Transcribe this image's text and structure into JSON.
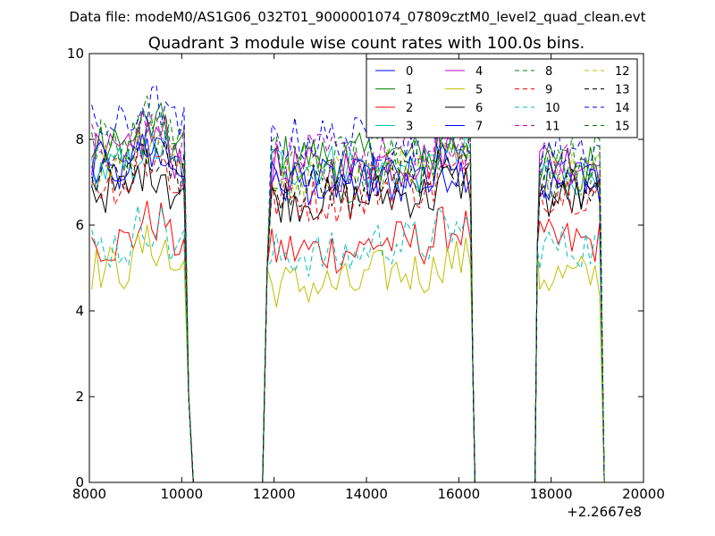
{
  "chart_data": {
    "type": "line",
    "suptitle": "Data file: modeM0/AS1G06_032T01_9000001074_07809cztM0_level2_quad_clean.evt",
    "title": "Quadrant 3 module wise count rates with 100.0s bins.",
    "xlabel": "",
    "ylabel": "",
    "x_offset_label": "+2.2667e8",
    "xlim": [
      8000,
      20000
    ],
    "ylim": [
      0,
      10
    ],
    "x_ticks": [
      8000,
      10000,
      12000,
      14000,
      16000,
      18000,
      20000
    ],
    "x_tick_labels": [
      "8000",
      "10000",
      "12000",
      "14000",
      "16000",
      "18000",
      "20000"
    ],
    "y_ticks": [
      0,
      2,
      4,
      6,
      8,
      10
    ],
    "y_tick_labels": [
      "0",
      "2",
      "4",
      "6",
      "8",
      "10"
    ],
    "grid": false,
    "legend_placement": "upper-right",
    "legend_columns": 4,
    "bin_seconds": 100,
    "segments": [
      {
        "start": 8050,
        "end": 10050
      },
      {
        "start": 11950,
        "end": 16250
      },
      {
        "start": 17750,
        "end": 19050
      }
    ],
    "zero_gap_points": [
      10250,
      10500,
      11000,
      11500,
      11750,
      16350,
      16500,
      17000,
      17500,
      17650
    ],
    "series": [
      {
        "name": "0",
        "color": "#0000ff",
        "dash": "solid",
        "levels": [
          7.2,
          7.0,
          7.0,
          6.9
        ]
      },
      {
        "name": "1",
        "color": "#008000",
        "dash": "solid",
        "levels": [
          7.8,
          7.6,
          7.6,
          7.4
        ]
      },
      {
        "name": "2",
        "color": "#ff0000",
        "dash": "solid",
        "levels": [
          5.6,
          5.4,
          5.6,
          5.6
        ]
      },
      {
        "name": "3",
        "color": "#00bfbf",
        "dash": "solid",
        "levels": [
          7.3,
          7.4,
          7.3,
          7.2
        ]
      },
      {
        "name": "4",
        "color": "#bf00bf",
        "dash": "solid",
        "levels": [
          7.6,
          7.3,
          7.5,
          7.5
        ]
      },
      {
        "name": "5",
        "color": "#bfbf00",
        "dash": "solid",
        "levels": [
          5.0,
          4.6,
          4.9,
          4.8
        ]
      },
      {
        "name": "6",
        "color": "#000000",
        "dash": "solid",
        "levels": [
          6.8,
          6.6,
          6.7,
          6.6
        ]
      },
      {
        "name": "7",
        "color": "#0000ff",
        "dash": "solid",
        "levels": [
          7.4,
          7.0,
          7.1,
          7.0
        ]
      },
      {
        "name": "8",
        "color": "#008000",
        "dash": "dashed",
        "levels": [
          7.6,
          7.0,
          7.2,
          7.2
        ]
      },
      {
        "name": "9",
        "color": "#ff0000",
        "dash": "dashed",
        "levels": [
          7.0,
          6.6,
          6.9,
          6.8
        ]
      },
      {
        "name": "10",
        "color": "#00bfbf",
        "dash": "dashed",
        "levels": [
          5.5,
          5.3,
          5.6,
          5.5
        ]
      },
      {
        "name": "11",
        "color": "#bf00bf",
        "dash": "dashed",
        "levels": [
          7.9,
          7.6,
          7.6,
          7.4
        ]
      },
      {
        "name": "12",
        "color": "#bfbf00",
        "dash": "dashed",
        "levels": [
          7.4,
          7.2,
          7.3,
          7.2
        ]
      },
      {
        "name": "13",
        "color": "#000000",
        "dash": "dashed",
        "levels": [
          7.2,
          6.9,
          7.0,
          6.9
        ]
      },
      {
        "name": "14",
        "color": "#0000ff",
        "dash": "dashed",
        "levels": [
          8.3,
          8.0,
          8.0,
          7.8
        ]
      },
      {
        "name": "15",
        "color": "#008000",
        "dash": "dashed",
        "levels": [
          8.0,
          7.6,
          7.7,
          7.6
        ]
      }
    ]
  }
}
